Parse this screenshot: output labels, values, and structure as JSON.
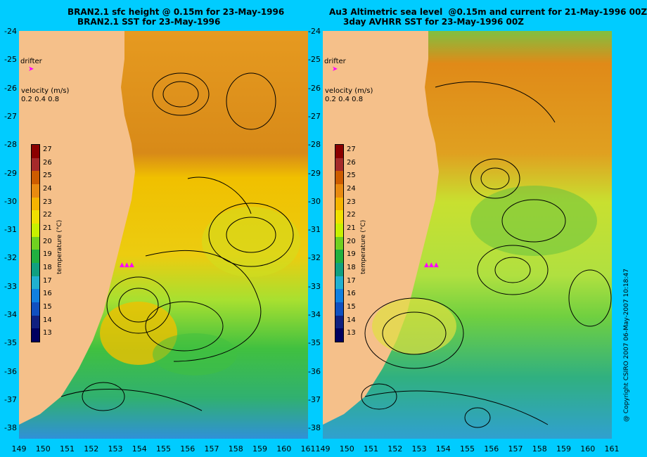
{
  "titles": {
    "left_line1": "BRAN2.1 sfc height @ 0.15m for 23-May-1996",
    "left_line2": "BRAN2.1 SST for 23-May-1996",
    "right_line1": "Au3 Altimetric sea level  @0.15m and current for 21-May-1996 00Z",
    "right_line2": "3day AVHRR SST for 23-May-1996 00Z"
  },
  "labels": {
    "drifter": "drifter",
    "velocity": "velocity (m/s)",
    "velocity_scale": "0.2 0.4 0.8",
    "colorbar_title": "temperature (°C)",
    "copyright": "@ Copyright CSIRO 2007 06-May-2007 10:18:47"
  },
  "axes": {
    "lat_ticks": [
      "-24",
      "-25",
      "-26",
      "-27",
      "-28",
      "-29",
      "-30",
      "-31",
      "-32",
      "-33",
      "-34",
      "-35",
      "-36",
      "-37",
      "-38"
    ],
    "lon_ticks": [
      "149",
      "150",
      "151",
      "152",
      "153",
      "154",
      "155",
      "156",
      "157",
      "158",
      "159",
      "160",
      "161"
    ]
  },
  "colorbar": {
    "ticks": [
      "27",
      "26",
      "25",
      "24",
      "23",
      "22",
      "21",
      "20",
      "19",
      "18",
      "17",
      "16",
      "15",
      "14",
      "13"
    ],
    "colors": [
      "#8b0000",
      "#a52a2a",
      "#cd5c00",
      "#e88a10",
      "#f5b400",
      "#f0e000",
      "#c8f000",
      "#70d020",
      "#20b040",
      "#10a080",
      "#20b0d0",
      "#1080e0",
      "#1050c0",
      "#102080",
      "#000060"
    ]
  },
  "colors": {
    "land": "#f5c08a",
    "background": "#00ccff",
    "drifter_marker": "#ff00ff"
  }
}
